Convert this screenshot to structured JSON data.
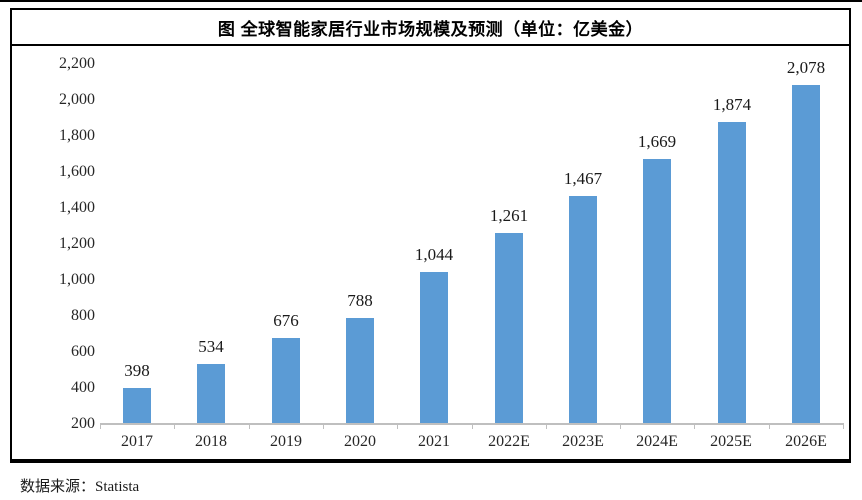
{
  "figure": {
    "title": "图 全球智能家居行业市场规模及预测（单位：亿美金）"
  },
  "footer": {
    "source": "数据来源：Statista"
  },
  "chart_data": {
    "type": "bar",
    "title": "图 全球智能家居行业市场规模及预测（单位：亿美金）",
    "categories": [
      "2017",
      "2018",
      "2019",
      "2020",
      "2021",
      "2022E",
      "2023E",
      "2024E",
      "2025E",
      "2026E"
    ],
    "values": [
      398,
      534,
      676,
      788,
      1044,
      1261,
      1467,
      1669,
      1874,
      2078
    ],
    "value_labels": [
      "398",
      "534",
      "676",
      "788",
      "1,044",
      "1,261",
      "1,467",
      "1,669",
      "1,874",
      "2,078"
    ],
    "xlabel": "",
    "ylabel": "",
    "ylim": [
      200,
      2200
    ],
    "ytick_step": 200,
    "ytick_labels": [
      "200",
      "400",
      "600",
      "800",
      "1,000",
      "1,200",
      "1,400",
      "1,600",
      "1,800",
      "2,000",
      "2,200"
    ],
    "grid": false,
    "legend": null,
    "bar_color": "#5B9BD5",
    "axis_color": "#BFBFBF",
    "source": "数据来源：Statista"
  }
}
